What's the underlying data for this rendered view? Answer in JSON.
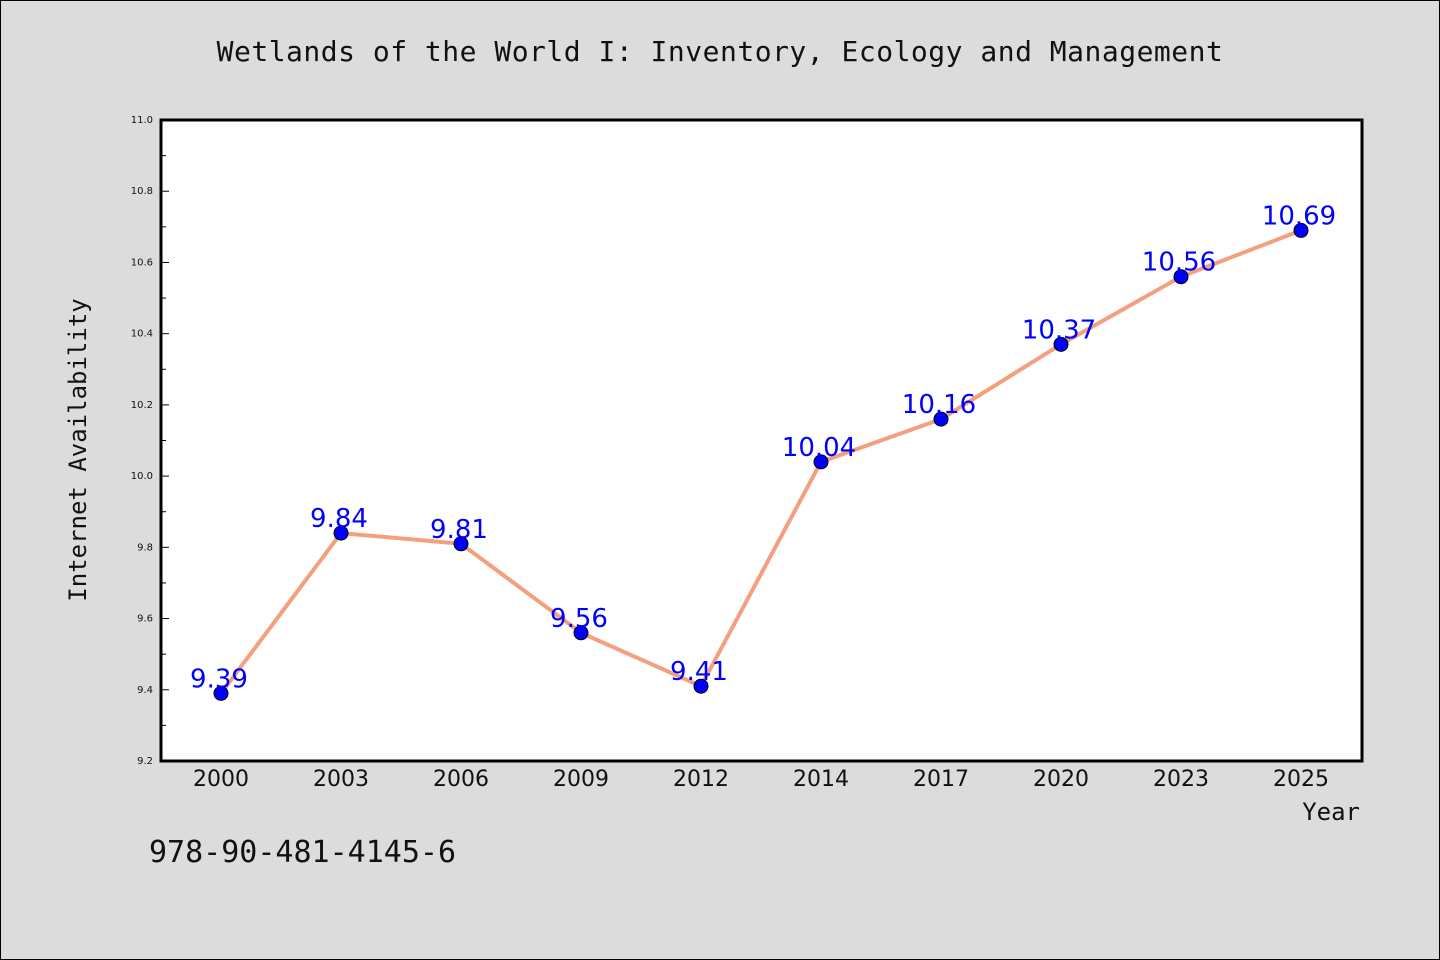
{
  "chart_data": {
    "type": "line",
    "title": "Wetlands of the World I: Inventory, Ecology and Management",
    "xlabel": "Year",
    "ylabel": "Internet Availability",
    "categories": [
      "2000",
      "2003",
      "2006",
      "2009",
      "2012",
      "2014",
      "2017",
      "2020",
      "2023",
      "2025"
    ],
    "values": [
      9.39,
      9.84,
      9.81,
      9.56,
      9.41,
      10.04,
      10.16,
      10.37,
      10.56,
      10.69
    ],
    "data_labels": [
      "9.39",
      "9.84",
      "9.81",
      "9.56",
      "9.41",
      "10.04",
      "10.16",
      "10.37",
      "10.56",
      "10.69"
    ],
    "ylim": [
      9.2,
      11.0
    ],
    "yticks": [
      "9.2",
      "9.4",
      "9.6",
      "9.8",
      "10.0",
      "10.2",
      "10.4",
      "10.6",
      "10.8",
      "11.0"
    ],
    "grid": false,
    "line_color": "#f4a07f",
    "marker_color": "#0000ff",
    "label_color": "#0000ff",
    "background_color": "#dcdcdc",
    "plot_background": "#ffffff"
  },
  "footnote": "978-90-481-4145-6"
}
